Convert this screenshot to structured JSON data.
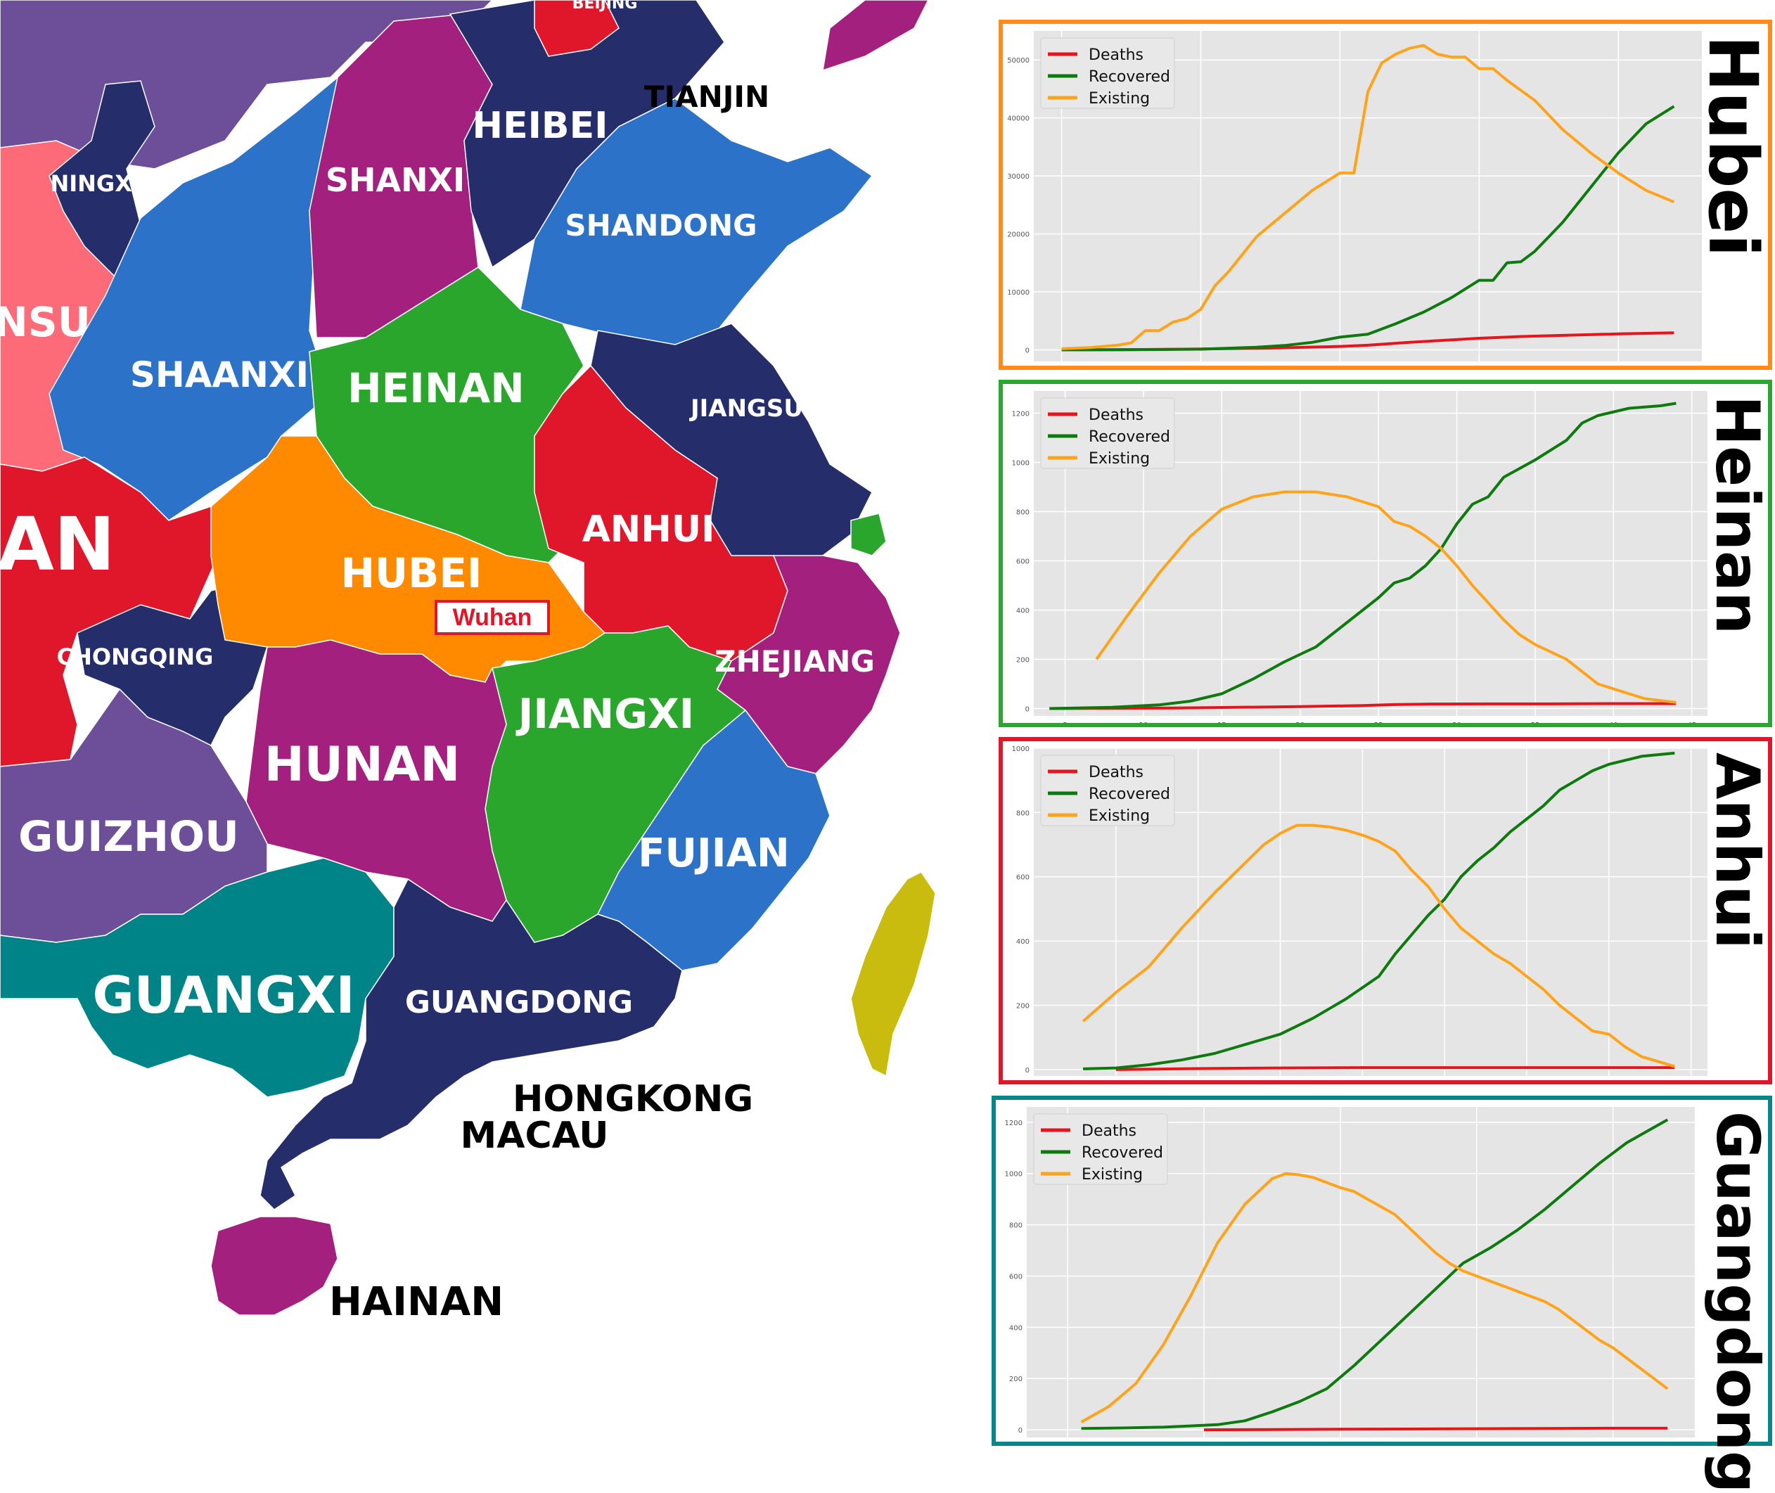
{
  "map": {
    "provinces": [
      {
        "key": "beijing",
        "label": "BEIJING",
        "color": "#e0172a"
      },
      {
        "key": "tianjin",
        "label": "TIANJIN",
        "color": "#ffffff"
      },
      {
        "key": "heibei",
        "label": "HEIBEI",
        "color": "#252d6b"
      },
      {
        "key": "ningxia",
        "label": "NINGXIA",
        "color": "#252d6b"
      },
      {
        "key": "shanxi",
        "label": "SHANXI",
        "color": "#a3207e"
      },
      {
        "key": "shandong",
        "label": "SHANDONG",
        "color": "#2c72c8"
      },
      {
        "key": "gansu",
        "label": "NSU",
        "color": "#fd6b78"
      },
      {
        "key": "shaanxi",
        "label": "SHAANXI",
        "color": "#2c72c8"
      },
      {
        "key": "heinan",
        "label": "HEINAN",
        "color": "#2ba62c"
      },
      {
        "key": "jiangsu",
        "label": "JIANGSU",
        "color": "#252d6b"
      },
      {
        "key": "sichuan",
        "label": "AN",
        "color": "#e0172a"
      },
      {
        "key": "hubei",
        "label": "HUBEI",
        "color": "#ff8a00"
      },
      {
        "key": "anhui",
        "label": "ANHUI",
        "color": "#e0172a"
      },
      {
        "key": "chongqing",
        "label": "CHONGQING",
        "color": "#252d6b"
      },
      {
        "key": "zhejiang",
        "label": "ZHEJIANG",
        "color": "#a3207e"
      },
      {
        "key": "jiangxi",
        "label": "JIANGXI",
        "color": "#2ba62c"
      },
      {
        "key": "hunan",
        "label": "HUNAN",
        "color": "#a3207e"
      },
      {
        "key": "guizhou",
        "label": "GUIZHOU",
        "color": "#6d4e98"
      },
      {
        "key": "fujian",
        "label": "FUJIAN",
        "color": "#2c72c8"
      },
      {
        "key": "guangxi",
        "label": "GUANGXI",
        "color": "#008487"
      },
      {
        "key": "guangdong",
        "label": "GUANGDONG",
        "color": "#252d6b"
      },
      {
        "key": "hongkong",
        "label": "HONGKONG",
        "color": "#ffffff"
      },
      {
        "key": "macau",
        "label": "MACAU",
        "color": "#ffffff"
      },
      {
        "key": "hainan",
        "label": "HAINAN",
        "color": "#a3207e"
      },
      {
        "key": "taiwan",
        "label": "",
        "color": "#c9bc0e"
      },
      {
        "key": "shanghai",
        "label": "",
        "color": "#2ba62c"
      }
    ],
    "city_marker": {
      "label": "Wuhan",
      "color": "#e0172a"
    }
  },
  "legend_labels": [
    "Deaths",
    "Recovered",
    "Existing"
  ],
  "series_colors": {
    "Deaths": "#e8141c",
    "Recovered": "#0d7a0d",
    "Existing": "#ffa31a"
  },
  "chart_data": [
    {
      "type": "line",
      "panel_title": "Hubei",
      "border_color": "#ff8c1a",
      "xlim": [
        -2,
        46
      ],
      "ylim": [
        -2000,
        55000
      ],
      "xticks": [
        "0",
        "10",
        "20",
        "30",
        "40"
      ],
      "yticks": [
        "0",
        "10000",
        "20000",
        "30000",
        "40000",
        "50000"
      ],
      "grid": true,
      "legend_position": "top-left",
      "series": [
        {
          "name": "Deaths",
          "x": [
            0,
            5,
            10,
            15,
            20,
            22,
            25,
            30,
            33,
            36,
            40,
            44
          ],
          "y": [
            0,
            50,
            150,
            300,
            600,
            800,
            1300,
            2000,
            2300,
            2500,
            2750,
            2950
          ]
        },
        {
          "name": "Recovered",
          "x": [
            0,
            5,
            10,
            14,
            16,
            18,
            20,
            22,
            24,
            26,
            28,
            30,
            31,
            32,
            33,
            34,
            35,
            36,
            38,
            40,
            42,
            44
          ],
          "y": [
            0,
            30,
            120,
            450,
            750,
            1300,
            2200,
            2700,
            4500,
            6500,
            9000,
            12000,
            12000,
            15000,
            15200,
            17000,
            19500,
            22000,
            28000,
            34000,
            39000,
            42000
          ]
        },
        {
          "name": "Existing",
          "x": [
            0,
            2,
            4,
            5,
            6,
            7,
            8,
            9,
            10,
            11,
            12,
            14,
            16,
            18,
            20,
            21,
            22,
            23,
            24,
            25,
            26,
            27,
            28,
            29,
            30,
            31,
            32,
            34,
            36,
            38,
            40,
            42,
            44
          ],
          "y": [
            200,
            400,
            800,
            1200,
            3300,
            3300,
            4800,
            5400,
            7000,
            11000,
            13500,
            19500,
            23500,
            27500,
            30500,
            30500,
            44500,
            49500,
            51000,
            52000,
            52500,
            51000,
            50500,
            50500,
            48500,
            48500,
            46500,
            43000,
            38000,
            34000,
            30500,
            27500,
            25500
          ]
        }
      ]
    },
    {
      "type": "line",
      "panel_title": "Heinan",
      "border_color": "#2ba632",
      "xlim": [
        3,
        46
      ],
      "ylim": [
        -30,
        1290
      ],
      "xticks": [
        "5",
        "10",
        "15",
        "20",
        "25",
        "30",
        "35",
        "40",
        "45"
      ],
      "yticks": [
        "0",
        "200",
        "400",
        "600",
        "800",
        "1000",
        "1200"
      ],
      "grid": true,
      "legend_position": "top-left",
      "series": [
        {
          "name": "Deaths",
          "x": [
            4,
            8,
            12,
            16,
            20,
            24,
            26,
            28,
            32,
            36,
            40,
            44
          ],
          "y": [
            0,
            1,
            2,
            5,
            8,
            12,
            16,
            18,
            19,
            19,
            20,
            20
          ]
        },
        {
          "name": "Recovered",
          "x": [
            4,
            8,
            11,
            13,
            15,
            17,
            19,
            21,
            23,
            25,
            26,
            27,
            28,
            29,
            30,
            31,
            32,
            33,
            35,
            37,
            38,
            39,
            41,
            43,
            44
          ],
          "y": [
            0,
            5,
            15,
            30,
            60,
            120,
            190,
            250,
            350,
            450,
            510,
            530,
            580,
            650,
            750,
            830,
            860,
            940,
            1010,
            1090,
            1160,
            1190,
            1220,
            1230,
            1240
          ]
        },
        {
          "name": "Existing",
          "x": [
            7,
            9,
            11,
            13,
            15,
            17,
            19,
            21,
            23,
            24,
            25,
            26,
            27,
            28,
            29,
            30,
            31,
            32,
            33,
            34,
            35,
            36,
            37,
            38,
            39,
            40,
            41,
            42,
            44
          ],
          "y": [
            200,
            380,
            550,
            700,
            810,
            860,
            880,
            880,
            860,
            840,
            820,
            760,
            740,
            700,
            650,
            580,
            500,
            430,
            360,
            300,
            260,
            230,
            200,
            150,
            100,
            80,
            60,
            40,
            25
          ]
        }
      ]
    },
    {
      "type": "line",
      "panel_title": "Anhui",
      "border_color": "#e3152a",
      "xlim": [
        5,
        46
      ],
      "ylim": [
        -20,
        1000
      ],
      "xticks": [
        "10",
        "15",
        "20",
        "25",
        "30",
        "35",
        "40",
        "45"
      ],
      "yticks": [
        "0",
        "200",
        "400",
        "600",
        "800",
        "1000"
      ],
      "grid": true,
      "legend_position": "top-left",
      "series": [
        {
          "name": "Deaths",
          "x": [
            10,
            15,
            20,
            25,
            30,
            35,
            40,
            44
          ],
          "y": [
            0,
            3,
            5,
            6,
            6,
            6,
            6,
            6
          ]
        },
        {
          "name": "Recovered",
          "x": [
            8,
            10,
            12,
            14,
            16,
            18,
            20,
            22,
            24,
            26,
            27,
            28,
            29,
            30,
            31,
            32,
            33,
            34,
            35,
            36,
            37,
            38,
            39,
            40,
            42,
            44
          ],
          "y": [
            2,
            5,
            15,
            30,
            50,
            80,
            110,
            160,
            220,
            290,
            360,
            420,
            480,
            530,
            600,
            650,
            690,
            740,
            780,
            820,
            870,
            900,
            930,
            950,
            975,
            985
          ]
        },
        {
          "name": "Existing",
          "x": [
            8,
            10,
            12,
            14,
            16,
            18,
            19,
            20,
            21,
            22,
            23,
            24,
            25,
            26,
            27,
            28,
            29,
            30,
            31,
            32,
            33,
            34,
            35,
            36,
            37,
            38,
            39,
            40,
            41,
            42,
            44
          ],
          "y": [
            150,
            240,
            320,
            440,
            550,
            650,
            700,
            735,
            760,
            760,
            755,
            745,
            730,
            710,
            680,
            620,
            570,
            500,
            440,
            400,
            360,
            330,
            290,
            250,
            200,
            160,
            120,
            110,
            70,
            40,
            10
          ]
        }
      ]
    },
    {
      "type": "line",
      "panel_title": "Guangdong",
      "border_color": "#078688",
      "xlim": [
        -3,
        46
      ],
      "ylim": [
        -30,
        1260
      ],
      "xticks": [
        "0",
        "10",
        "20",
        "30",
        "40"
      ],
      "yticks": [
        "0",
        "200",
        "400",
        "600",
        "800",
        "1000",
        "1200"
      ],
      "grid": true,
      "legend_position": "top-left",
      "series": [
        {
          "name": "Deaths",
          "x": [
            10,
            15,
            20,
            25,
            30,
            35,
            40,
            44
          ],
          "y": [
            0,
            1,
            2,
            3,
            4,
            5,
            6,
            6
          ]
        },
        {
          "name": "Recovered",
          "x": [
            1,
            4,
            7,
            9,
            11,
            13,
            15,
            17,
            19,
            21,
            23,
            25,
            27,
            29,
            31,
            33,
            35,
            37,
            39,
            41,
            43,
            44
          ],
          "y": [
            5,
            7,
            10,
            15,
            20,
            35,
            70,
            110,
            160,
            250,
            350,
            450,
            550,
            650,
            710,
            780,
            860,
            950,
            1040,
            1120,
            1180,
            1210
          ]
        },
        {
          "name": "Existing",
          "x": [
            1,
            3,
            5,
            7,
            9,
            11,
            13,
            15,
            16,
            17,
            18,
            19,
            20,
            21,
            22,
            23,
            24,
            25,
            26,
            27,
            28,
            29,
            30,
            31,
            32,
            33,
            34,
            35,
            36,
            37,
            38,
            39,
            40,
            41,
            42,
            43,
            44
          ],
          "y": [
            30,
            90,
            180,
            330,
            520,
            730,
            880,
            980,
            1000,
            995,
            985,
            965,
            945,
            930,
            900,
            870,
            840,
            790,
            740,
            690,
            650,
            620,
            600,
            580,
            560,
            540,
            520,
            500,
            470,
            430,
            390,
            350,
            320,
            280,
            240,
            200,
            160
          ]
        }
      ]
    }
  ]
}
